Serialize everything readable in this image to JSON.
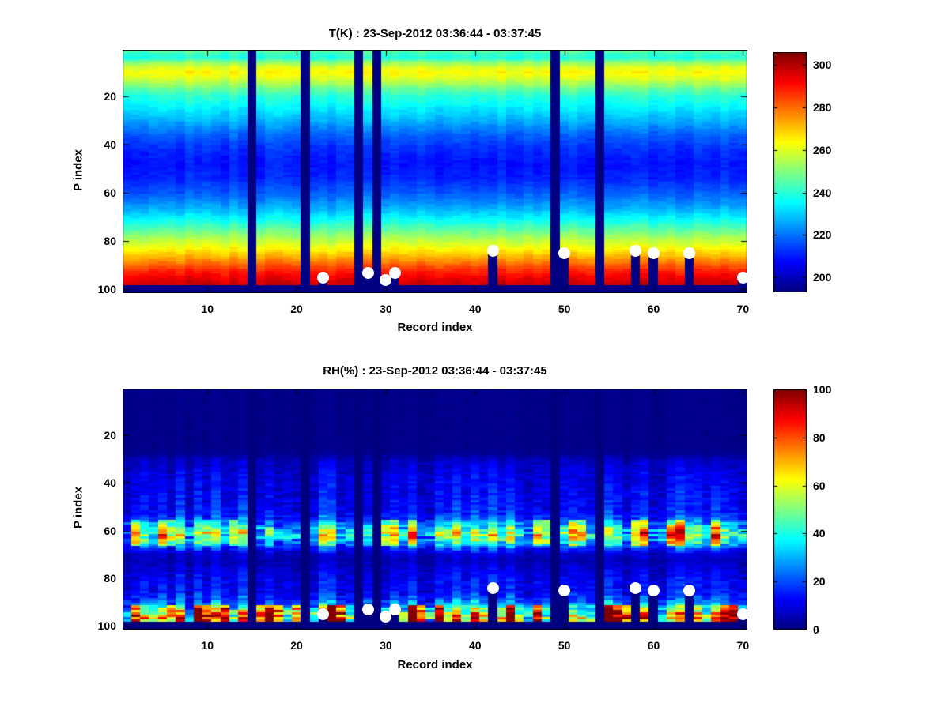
{
  "chart_data": [
    {
      "id": "temperature",
      "type": "heatmap",
      "title": "T(K) : 23-Sep-2012 03:36:44 - 03:37:45",
      "xlabel": "Record index",
      "ylabel": "P index",
      "x_range": [
        1,
        70
      ],
      "p_range": [
        1,
        101
      ],
      "y_axis_reversed": true,
      "x_ticks": [
        10,
        20,
        30,
        40,
        50,
        60,
        70
      ],
      "y_ticks": [
        20,
        40,
        60,
        80,
        100
      ],
      "colormap": "jet",
      "color_range": [
        193,
        306
      ],
      "colorbar_ticks": [
        200,
        220,
        240,
        260,
        280,
        300
      ],
      "grid": false,
      "values_estimated_from_colors": true,
      "vertical_profile_estimate": [
        [
          1,
          247
        ],
        [
          2,
          242
        ],
        [
          4,
          239
        ],
        [
          6,
          252
        ],
        [
          8,
          260
        ],
        [
          10,
          264
        ],
        [
          12,
          261
        ],
        [
          14,
          256
        ],
        [
          17,
          247
        ],
        [
          20,
          240
        ],
        [
          24,
          235
        ],
        [
          30,
          227
        ],
        [
          36,
          218
        ],
        [
          42,
          212
        ],
        [
          48,
          209
        ],
        [
          54,
          211
        ],
        [
          60,
          217
        ],
        [
          66,
          226
        ],
        [
          72,
          238
        ],
        [
          78,
          252
        ],
        [
          84,
          266
        ],
        [
          88,
          276
        ],
        [
          92,
          287
        ],
        [
          95,
          293
        ],
        [
          97,
          296
        ],
        [
          98,
          297
        ]
      ],
      "noise": {
        "column_amplitude": 2.2,
        "cell_amplitude": 1.6
      },
      "missing_records": [
        15,
        21,
        27,
        29,
        49,
        54
      ],
      "missing_below_p": 99,
      "markers": {
        "symbol": "circle",
        "color": "#ffffff",
        "points_record_p": [
          [
            23,
            95
          ],
          [
            28,
            93
          ],
          [
            30,
            96
          ],
          [
            31,
            93
          ],
          [
            42,
            84
          ],
          [
            50,
            85
          ],
          [
            58,
            84
          ],
          [
            60,
            85
          ],
          [
            64,
            85
          ],
          [
            70,
            95
          ]
        ],
        "data_gap_below_each_marker": true
      }
    },
    {
      "id": "relative-humidity",
      "type": "heatmap",
      "title": "RH(%) : 23-Sep-2012 03:36:44 - 03:37:45",
      "xlabel": "Record index",
      "ylabel": "P index",
      "x_range": [
        1,
        70
      ],
      "p_range": [
        1,
        101
      ],
      "y_axis_reversed": true,
      "x_ticks": [
        10,
        20,
        30,
        40,
        50,
        60,
        70
      ],
      "y_ticks": [
        20,
        40,
        60,
        80,
        100
      ],
      "colormap": "jet",
      "color_range": [
        0,
        100
      ],
      "colorbar_ticks": [
        0,
        20,
        40,
        60,
        80,
        100
      ],
      "grid": false,
      "values_estimated_from_colors": true,
      "vertical_profile_estimate": [
        [
          1,
          1
        ],
        [
          25,
          1
        ],
        [
          28,
          2
        ],
        [
          31,
          7
        ],
        [
          36,
          10
        ],
        [
          42,
          12
        ],
        [
          48,
          13
        ],
        [
          52,
          15
        ],
        [
          55,
          20
        ],
        [
          58,
          34
        ],
        [
          60,
          45
        ],
        [
          62,
          48
        ],
        [
          64,
          42
        ],
        [
          66,
          30
        ],
        [
          68,
          16
        ],
        [
          70,
          8
        ],
        [
          73,
          6
        ],
        [
          77,
          10
        ],
        [
          82,
          13
        ],
        [
          86,
          14
        ],
        [
          89,
          20
        ],
        [
          91,
          28
        ],
        [
          93,
          45
        ],
        [
          95,
          58
        ],
        [
          97,
          66
        ],
        [
          98,
          60
        ]
      ],
      "noise": {
        "column_factor": 0.45,
        "cell_factor": 0.3
      },
      "mid_band_hot_records": [
        2,
        5,
        6,
        10,
        13,
        30,
        31,
        33,
        47,
        48,
        51,
        52,
        58,
        59,
        62,
        63,
        67
      ],
      "mid_band_p_range": [
        56,
        66
      ],
      "bottom_hot_records": [
        2,
        6,
        9,
        10,
        12,
        16,
        17,
        18,
        20,
        24,
        25,
        33,
        34,
        36,
        44,
        47,
        55,
        56,
        57,
        68,
        69
      ],
      "bottom_hot_p_range": [
        92,
        98
      ],
      "missing_records": [
        15,
        21,
        27,
        29,
        49,
        54
      ],
      "missing_below_p": 99,
      "markers": {
        "symbol": "circle",
        "color": "#ffffff",
        "points_record_p": [
          [
            23,
            95
          ],
          [
            28,
            93
          ],
          [
            30,
            96
          ],
          [
            31,
            93
          ],
          [
            42,
            84
          ],
          [
            50,
            85
          ],
          [
            58,
            84
          ],
          [
            60,
            85
          ],
          [
            64,
            85
          ],
          [
            70,
            95
          ]
        ],
        "data_gap_below_each_marker": true
      }
    }
  ]
}
